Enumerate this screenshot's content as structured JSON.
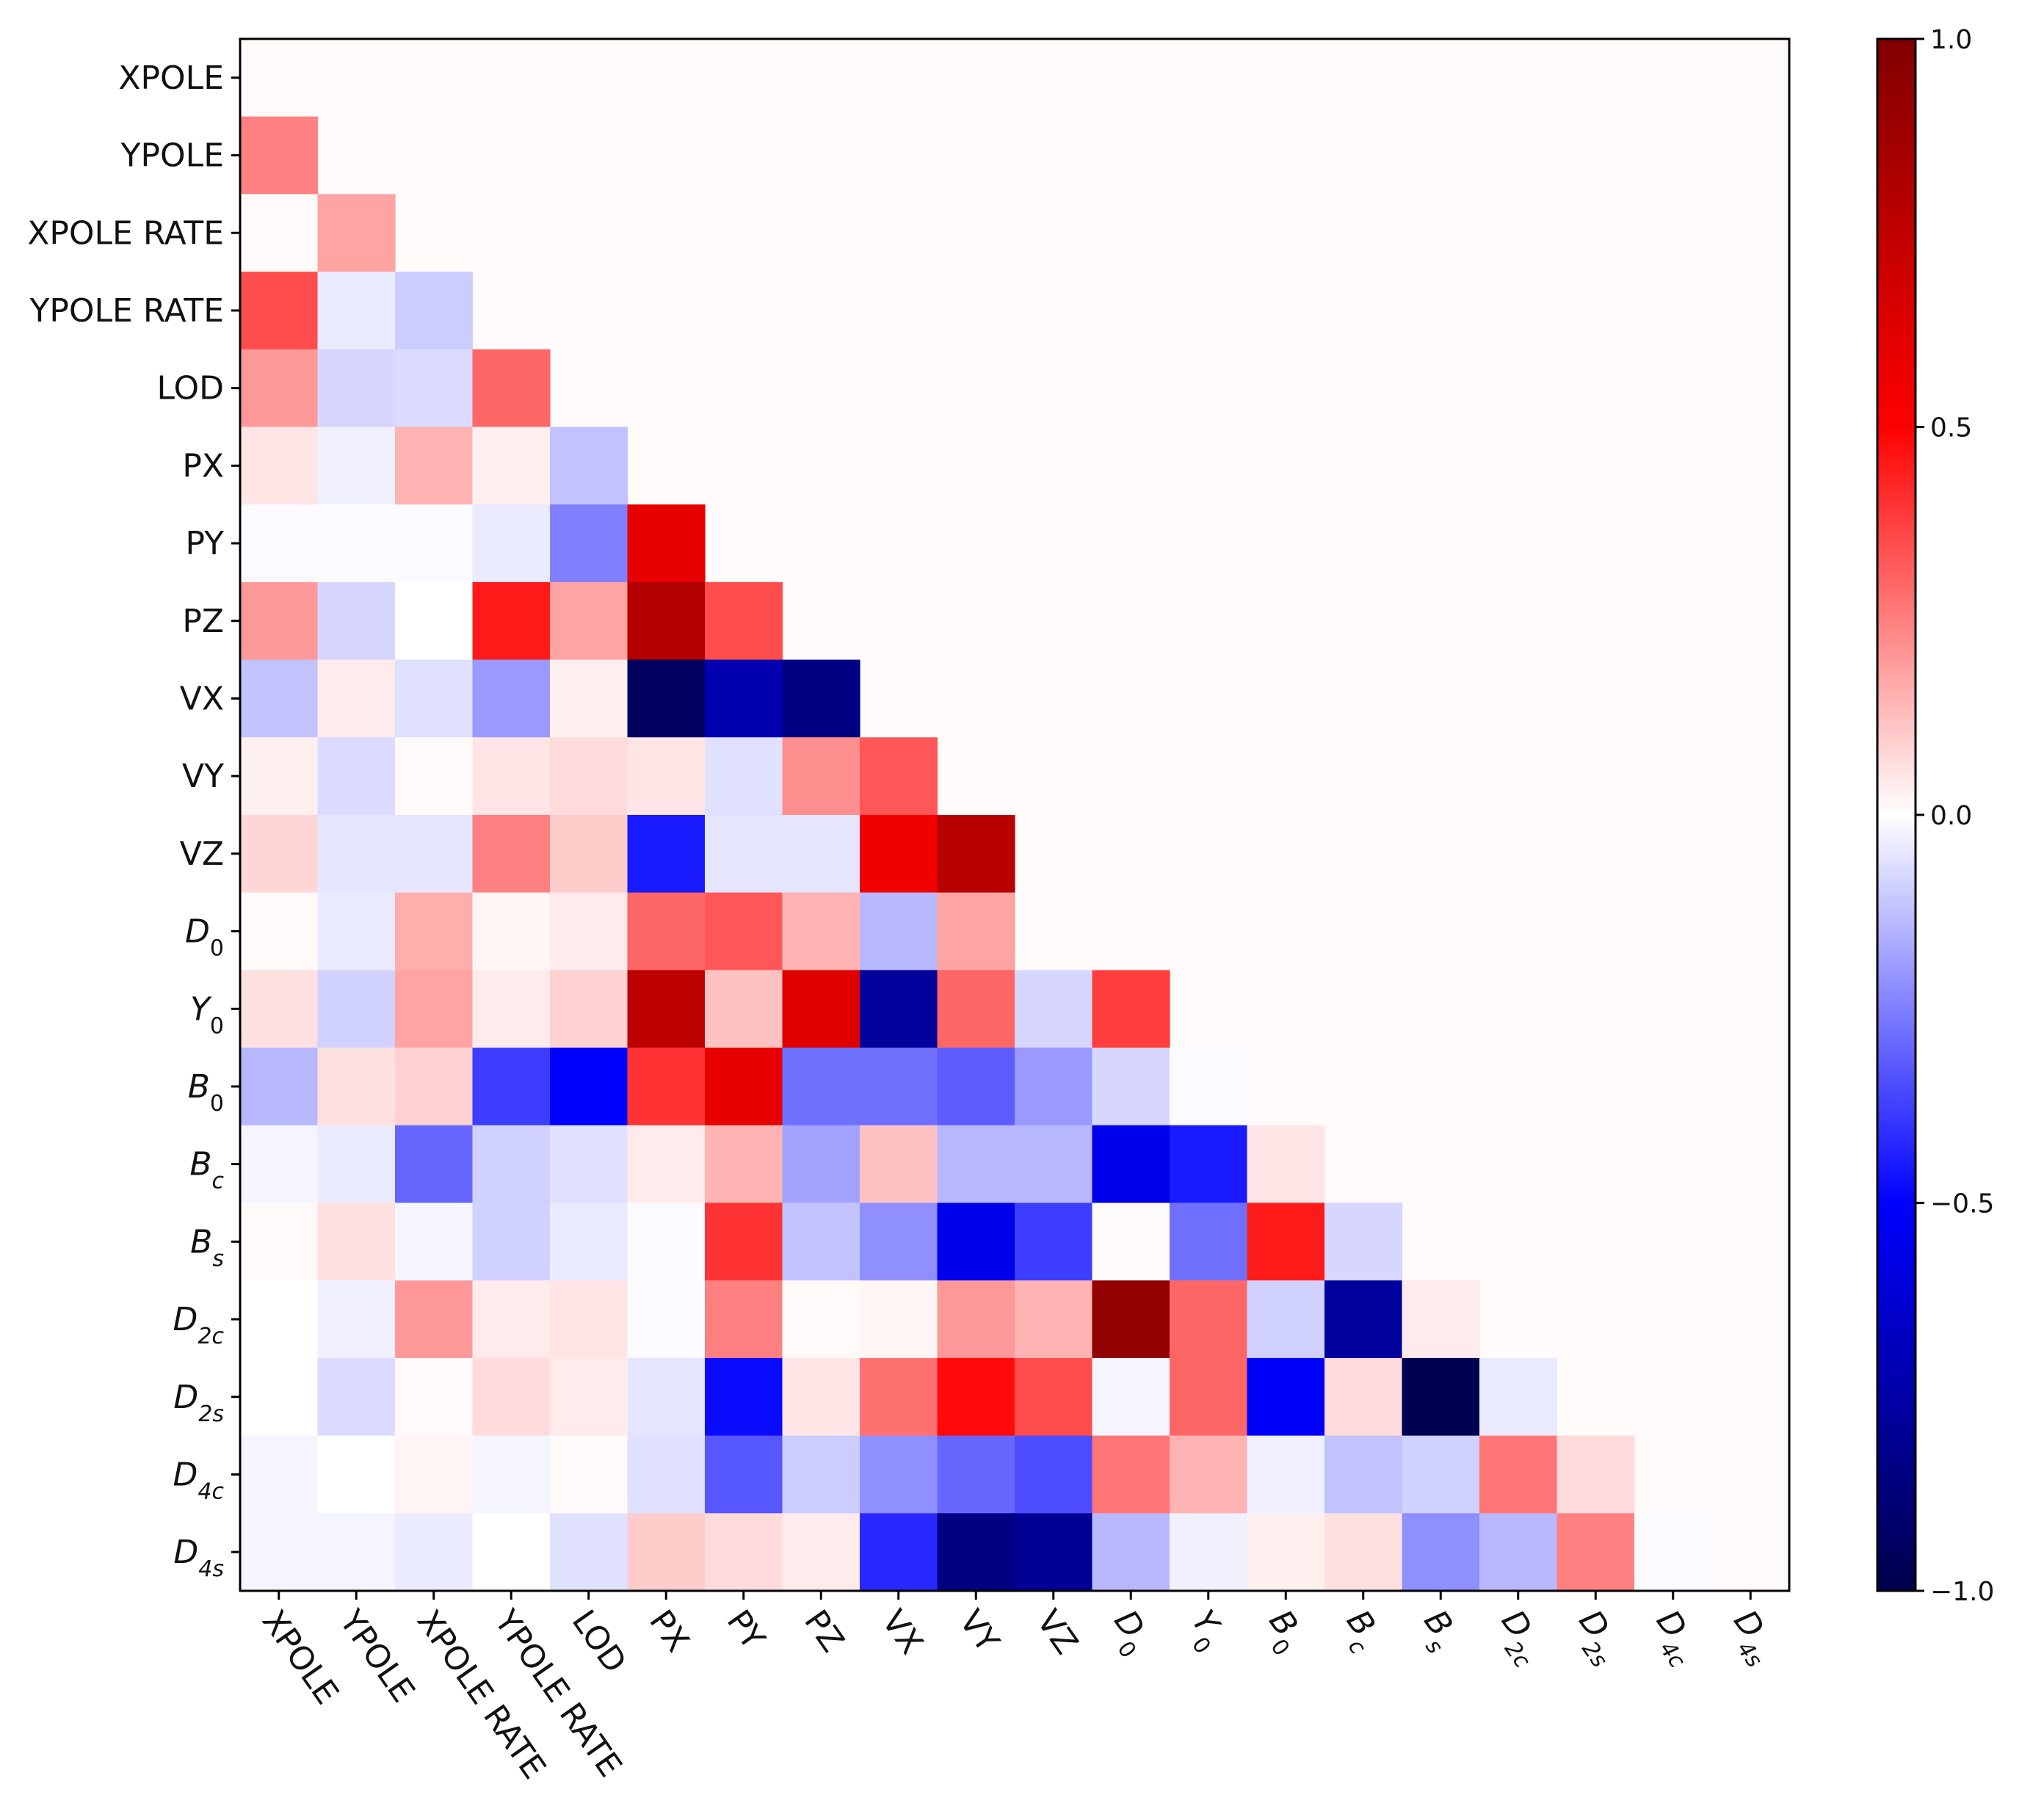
{
  "chart_data": {
    "type": "heatmap",
    "title": "",
    "xlabel": "",
    "ylabel": "",
    "labels": [
      {
        "text": "XPOLE",
        "base": "XPOLE",
        "sub": ""
      },
      {
        "text": "YPOLE",
        "base": "YPOLE",
        "sub": ""
      },
      {
        "text": "XPOLE RATE",
        "base": "XPOLE RATE",
        "sub": ""
      },
      {
        "text": "YPOLE RATE",
        "base": "YPOLE RATE",
        "sub": ""
      },
      {
        "text": "LOD",
        "base": "LOD",
        "sub": ""
      },
      {
        "text": "PX",
        "base": "PX",
        "sub": ""
      },
      {
        "text": "PY",
        "base": "PY",
        "sub": ""
      },
      {
        "text": "PZ",
        "base": "PZ",
        "sub": ""
      },
      {
        "text": "VX",
        "base": "VX",
        "sub": ""
      },
      {
        "text": "VY",
        "base": "VY",
        "sub": ""
      },
      {
        "text": "VZ",
        "base": "VZ",
        "sub": ""
      },
      {
        "text": "D0",
        "base": "D",
        "sub": "0"
      },
      {
        "text": "Y0",
        "base": "Y",
        "sub": "0"
      },
      {
        "text": "B0",
        "base": "B",
        "sub": "0"
      },
      {
        "text": "Bc",
        "base": "B",
        "sub": "c"
      },
      {
        "text": "Bs",
        "base": "B",
        "sub": "s"
      },
      {
        "text": "D2c",
        "base": "D",
        "sub": "2c"
      },
      {
        "text": "D2s",
        "base": "D",
        "sub": "2s"
      },
      {
        "text": "D4c",
        "base": "D",
        "sub": "4c"
      },
      {
        "text": "D4s",
        "base": "D",
        "sub": "4s"
      }
    ],
    "matrix": [
      [],
      [
        0.25
      ],
      [
        0.01,
        0.18
      ],
      [
        0.35,
        -0.04,
        -0.1
      ],
      [
        0.2,
        -0.08,
        -0.07,
        0.3
      ],
      [
        0.05,
        -0.03,
        0.15,
        0.03,
        -0.12
      ],
      [
        -0.01,
        -0.01,
        -0.01,
        -0.04,
        -0.25,
        0.6
      ],
      [
        0.2,
        -0.08,
        0.0,
        0.45,
        0.18,
        0.8,
        0.35
      ],
      [
        -0.12,
        0.04,
        -0.06,
        -0.2,
        0.03,
        -0.95,
        -0.72,
        -0.85
      ],
      [
        0.03,
        -0.07,
        0.01,
        0.05,
        0.07,
        0.05,
        -0.06,
        0.22,
        0.33
      ],
      [
        0.08,
        -0.05,
        -0.05,
        0.25,
        0.1,
        -0.45,
        -0.05,
        -0.05,
        0.55,
        0.78
      ],
      [
        0.01,
        -0.04,
        0.16,
        0.02,
        0.04,
        0.3,
        0.33,
        0.15,
        -0.14,
        0.18
      ],
      [
        0.06,
        -0.09,
        0.18,
        0.04,
        0.09,
        0.76,
        0.12,
        0.62,
        -0.78,
        0.3,
        -0.08,
        0.38
      ],
      [
        -0.14,
        0.06,
        0.09,
        -0.38,
        -0.5,
        0.4,
        0.6,
        -0.28,
        -0.28,
        -0.32,
        -0.2,
        -0.08,
        -0.01
      ],
      [
        -0.02,
        -0.04,
        -0.3,
        -0.09,
        -0.06,
        0.04,
        0.15,
        -0.18,
        0.12,
        -0.14,
        -0.14,
        -0.55,
        -0.45,
        0.05
      ],
      [
        0.01,
        0.06,
        -0.02,
        -0.09,
        -0.04,
        -0.01,
        0.4,
        -0.12,
        -0.22,
        -0.55,
        -0.38,
        0.01,
        -0.28,
        0.45,
        -0.08
      ],
      [
        0.0,
        -0.03,
        0.2,
        0.04,
        0.05,
        -0.01,
        0.25,
        0.01,
        0.02,
        0.2,
        0.15,
        0.93,
        0.3,
        -0.09,
        -0.78,
        0.04
      ],
      [
        0.0,
        -0.07,
        0.01,
        0.07,
        0.04,
        -0.05,
        -0.48,
        0.05,
        0.28,
        0.48,
        0.35,
        -0.02,
        0.3,
        -0.52,
        0.07,
        -0.98,
        -0.04
      ],
      [
        -0.02,
        0.0,
        0.02,
        -0.02,
        0.01,
        -0.06,
        -0.33,
        -0.1,
        -0.22,
        -0.3,
        -0.35,
        0.27,
        0.15,
        -0.03,
        -0.12,
        -0.09,
        0.27,
        0.07
      ],
      [
        -0.02,
        -0.02,
        -0.04,
        0.0,
        -0.06,
        0.1,
        0.07,
        0.04,
        -0.42,
        -0.85,
        -0.8,
        -0.14,
        -0.03,
        0.03,
        0.06,
        -0.22,
        -0.14,
        0.25,
        -0.01
      ]
    ],
    "background_value": 0.0,
    "colormap": "seismic",
    "vmin": -1.0,
    "vmax": 1.0,
    "colorbar": {
      "ticks": [
        1.0,
        0.5,
        0.0,
        -0.5,
        -1.0
      ],
      "tick_labels": [
        "1.0",
        "0.5",
        "0.0",
        "−0.5",
        "−1.0"
      ]
    },
    "grid": false,
    "legend": "colorbar-right"
  }
}
